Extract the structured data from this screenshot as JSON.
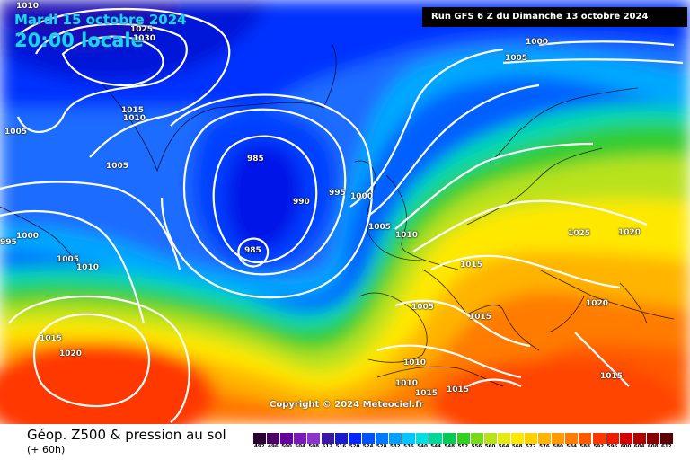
{
  "header": {
    "date": "Mardi 15 octobre 2024",
    "time": "20:00 locale",
    "run_info": "Run GFS 6 Z du Dimanche 13 octobre 2024"
  },
  "copyright": "Copyright © 2024 Meteociel.fr",
  "footer": {
    "title": "Géop. Z500 & pression au sol",
    "subtitle": "(+ 60h)"
  },
  "legend": {
    "values": [
      "492",
      "496",
      "500",
      "504",
      "508",
      "512",
      "516",
      "520",
      "524",
      "528",
      "532",
      "536",
      "540",
      "544",
      "548",
      "552",
      "556",
      "560",
      "564",
      "568",
      "572",
      "576",
      "580",
      "584",
      "588",
      "592",
      "596",
      "600",
      "604",
      "608",
      "612"
    ],
    "colors": [
      "#2b0033",
      "#4a0066",
      "#66009a",
      "#7a1ab8",
      "#8b35c9",
      "#3a1aa0",
      "#1a1ad0",
      "#0026ff",
      "#0050ff",
      "#0078ff",
      "#00a0ff",
      "#00c8ff",
      "#00e0e0",
      "#00d89a",
      "#00cc55",
      "#33d11f",
      "#7ad91a",
      "#b8e21a",
      "#e5ea14",
      "#ffe800",
      "#ffd000",
      "#ffb400",
      "#ff9a00",
      "#ff7c00",
      "#ff5a00",
      "#ff3800",
      "#f01a00",
      "#d40000",
      "#b00000",
      "#850000",
      "#5a0000"
    ]
  },
  "pressure_labels": [
    "1010",
    "1025",
    "1030",
    "1000",
    "1005",
    "1015",
    "1010",
    "1005",
    "1005",
    "985",
    "990",
    "995",
    "1000",
    "1005",
    "1010",
    "1000",
    "1005",
    "1010",
    "985",
    "1015",
    "1025",
    "1020",
    "1005",
    "1015",
    "1020",
    "1015",
    "1020",
    "1010",
    "1010",
    "1015",
    "1015",
    "1015",
    "995"
  ]
}
